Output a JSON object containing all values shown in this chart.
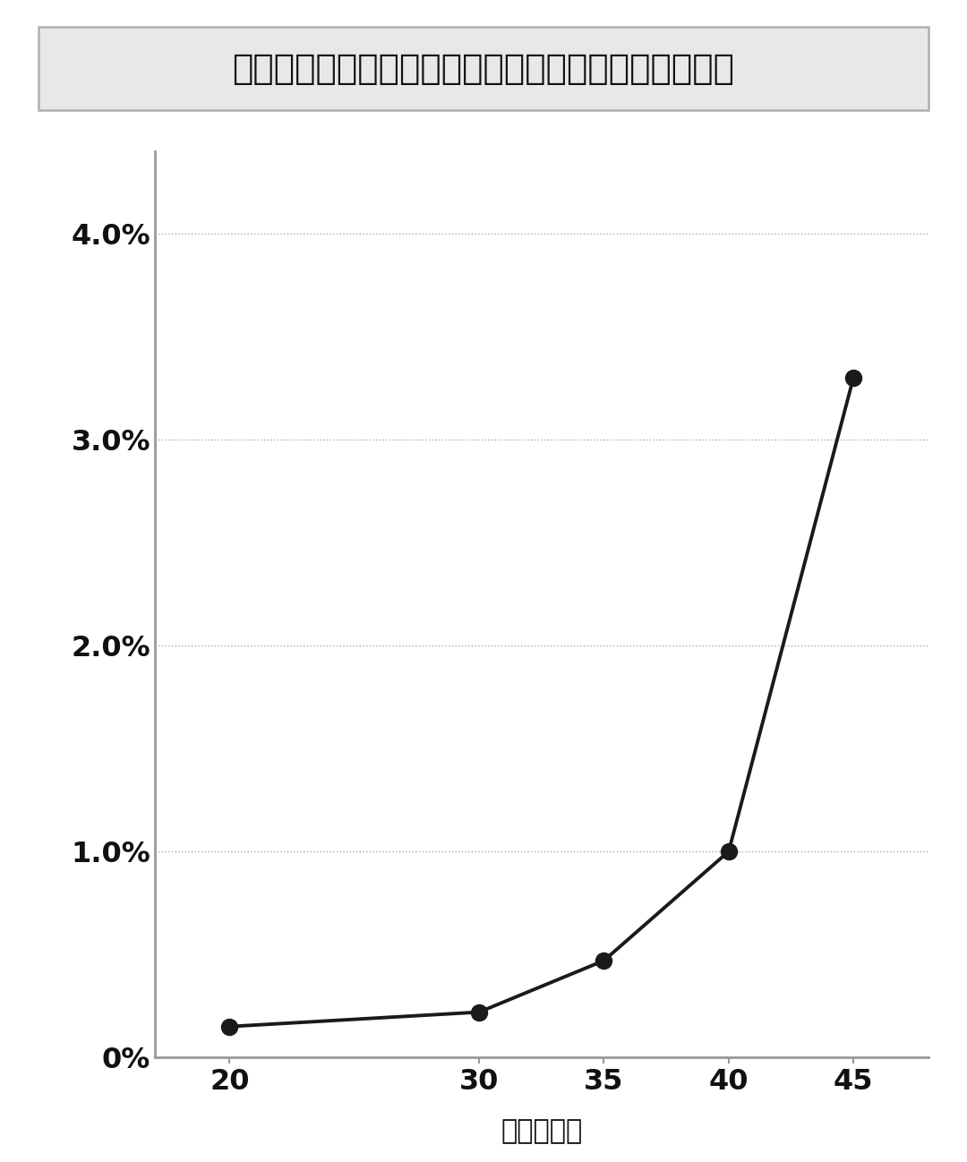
{
  "title": "妊婦の年齢で変わるダウン症の子どもを出産する確率",
  "x_values": [
    20,
    30,
    35,
    40,
    45
  ],
  "y_values": [
    0.0015,
    0.0022,
    0.0047,
    0.01,
    0.033
  ],
  "x_label": "妊婦の年齢",
  "x_ticks": [
    20,
    30,
    35,
    40,
    45
  ],
  "y_ticks": [
    0.0,
    0.01,
    0.02,
    0.03,
    0.04
  ],
  "y_tick_labels": [
    "0%",
    "1.0%",
    "2.0%",
    "3.0%",
    "4.0%"
  ],
  "ylim": [
    0.0,
    0.044
  ],
  "xlim": [
    17,
    48
  ],
  "line_color": "#1a1a1a",
  "marker_color": "#1a1a1a",
  "marker_size": 13,
  "line_width": 2.8,
  "background_color": "#ffffff",
  "title_box_facecolor": "#e8e8e8",
  "title_box_edgecolor": "#b0b0b0",
  "title_fontsize": 28,
  "axis_label_fontsize": 22,
  "tick_fontsize": 23,
  "grid_color": "#aaaaaa",
  "grid_linewidth": 1.0,
  "spine_color": "#999999",
  "spine_linewidth": 2.0
}
